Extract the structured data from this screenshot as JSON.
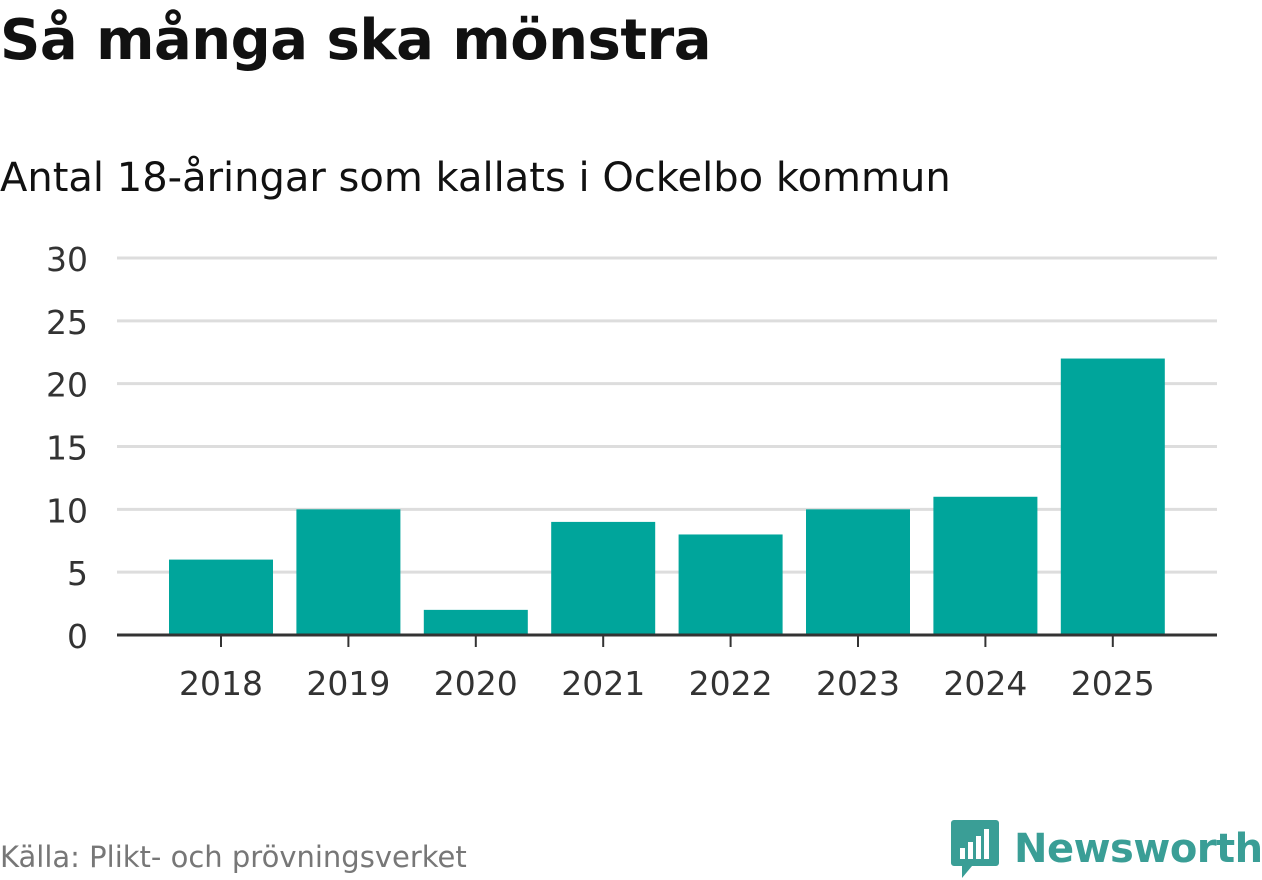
{
  "header": {
    "title": "Så många ska mönstra",
    "subtitle": "Antal 18-åringar som kallats i Ockelbo kommun"
  },
  "footer": {
    "source": "Källa: Plikt- och prövningsverket",
    "brand": "Newsworthy",
    "brand_icon": "newsworthy-logo-icon"
  },
  "colors": {
    "bar": "#00a59b",
    "grid": "#dddddd",
    "axis": "#333333",
    "brand": "#3a9e96"
  },
  "chart_data": {
    "type": "bar",
    "title": "Så många ska mönstra",
    "subtitle": "Antal 18-åringar som kallats i Ockelbo kommun",
    "categories": [
      "2018",
      "2019",
      "2020",
      "2021",
      "2022",
      "2023",
      "2024",
      "2025"
    ],
    "values": [
      6,
      10,
      2,
      9,
      8,
      10,
      11,
      22
    ],
    "yticks": [
      0,
      5,
      10,
      15,
      20,
      25,
      30
    ],
    "ylim": [
      0,
      30
    ],
    "xlabel": "",
    "ylabel": "",
    "grid": true,
    "legend": "none"
  }
}
